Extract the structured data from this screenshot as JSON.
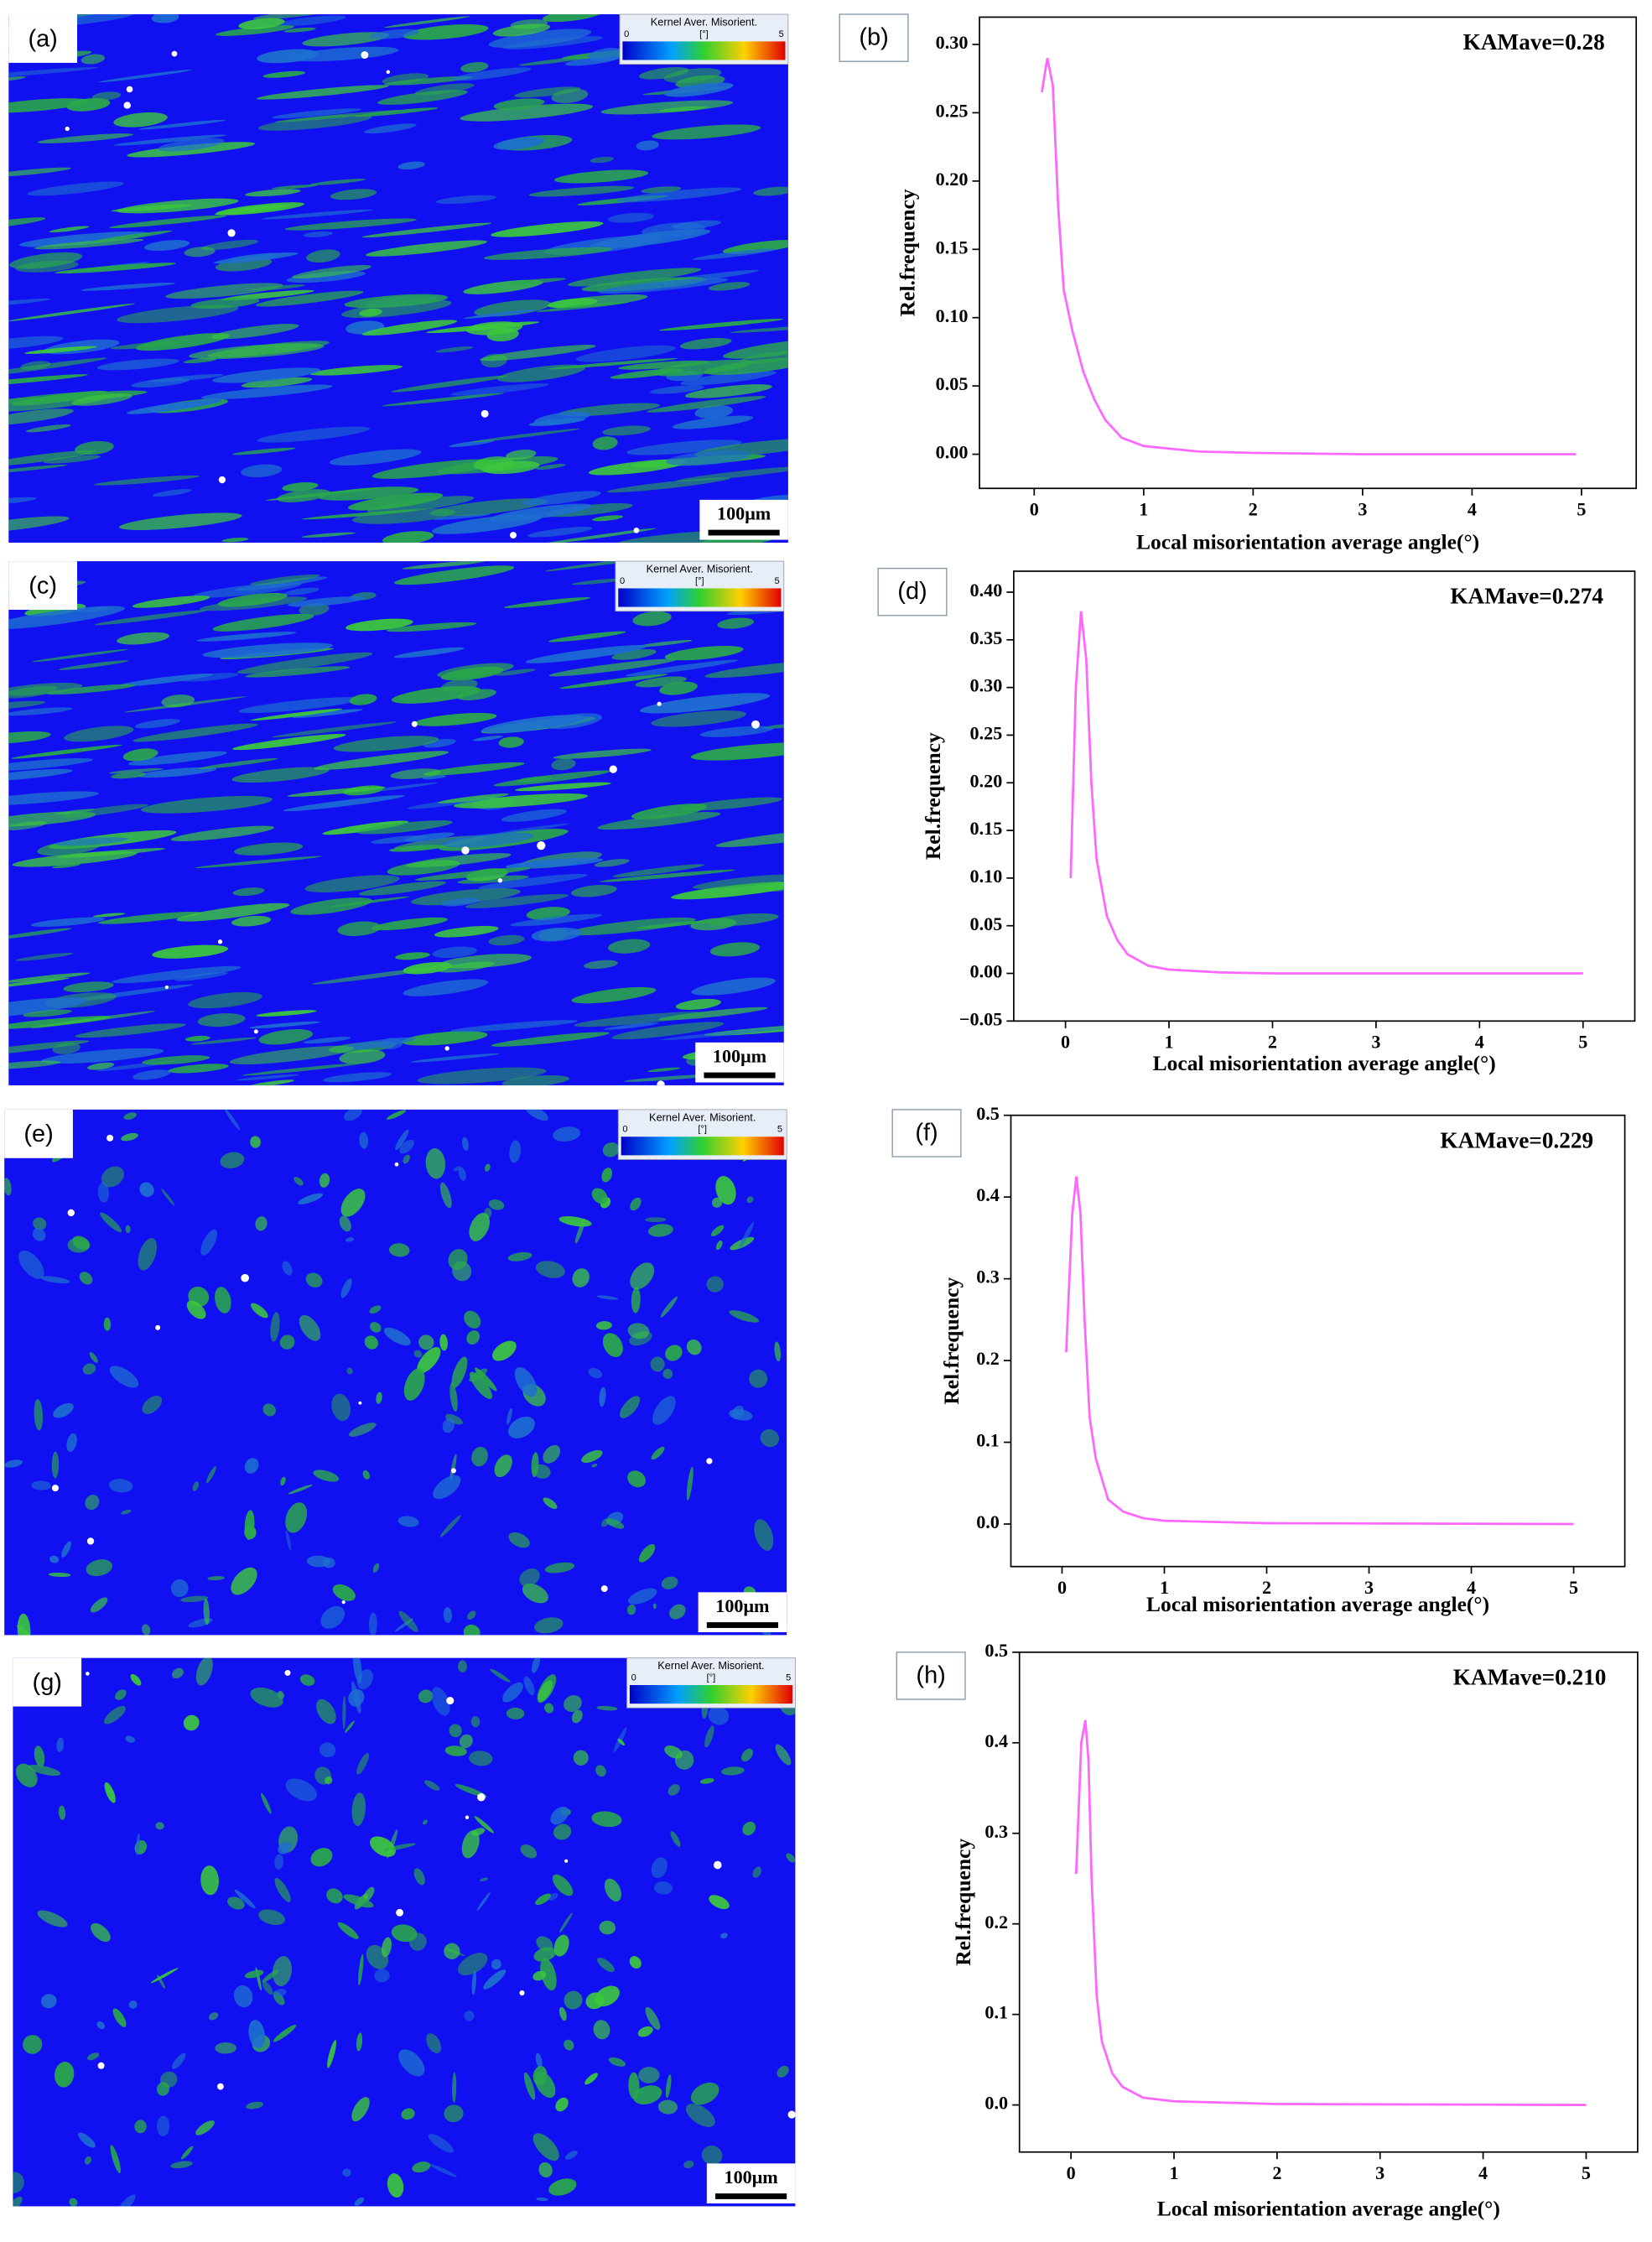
{
  "maps": [
    {
      "label": "(a)",
      "colorbar": {
        "title": "Kernel Aver. Misorient.",
        "min": 0,
        "unit": "[°]",
        "max": 5
      },
      "scale_bar": "100μm"
    },
    {
      "label": "(c)",
      "colorbar": {
        "title": "Kernel Aver. Misorient.",
        "min": 0,
        "unit": "[°]",
        "max": 5
      },
      "scale_bar": "100μm"
    },
    {
      "label": "(e)",
      "colorbar": {
        "title": "Kernel Aver. Misorient.",
        "min": 0,
        "unit": "[°]",
        "max": 5
      },
      "scale_bar": "100μm"
    },
    {
      "label": "(g)",
      "colorbar": {
        "title": "Kernel Aver. Misorient.",
        "min": 0,
        "unit": "[°]",
        "max": 5
      },
      "scale_bar": "100μm"
    }
  ],
  "chart_data": [
    {
      "type": "line",
      "label": "(b)",
      "annotation": "KAMave=0.28",
      "xlabel": "Local misorientation average angle(°)",
      "ylabel": "Rel.frequency",
      "color": "#ff66ff",
      "x": [
        0.07,
        0.12,
        0.17,
        0.22,
        0.27,
        0.35,
        0.45,
        0.55,
        0.65,
        0.8,
        1.0,
        1.5,
        2,
        3,
        4,
        4.95
      ],
      "values": [
        0.265,
        0.29,
        0.27,
        0.18,
        0.12,
        0.09,
        0.06,
        0.04,
        0.025,
        0.012,
        0.006,
        0.002,
        0.001,
        0,
        0,
        0
      ],
      "xlim": [
        -0.5,
        5.5
      ],
      "ylim": [
        -0.025,
        0.32
      ],
      "xticks": [
        0,
        1,
        2,
        3,
        4,
        5
      ],
      "yticks": [
        {
          "value": 0,
          "label": "0.00"
        },
        {
          "value": 0.05,
          "label": "0.05"
        },
        {
          "value": 0.1,
          "label": "0.10"
        },
        {
          "value": 0.15,
          "label": "0.15"
        },
        {
          "value": 0.2,
          "label": "0.20"
        },
        {
          "value": 0.25,
          "label": "0.25"
        },
        {
          "value": 0.3,
          "label": "0.30"
        }
      ]
    },
    {
      "type": "line",
      "label": "(d)",
      "annotation": "KAMave=0.274",
      "xlabel": "Local misorientation average angle(°)",
      "ylabel": "Rel.frequency",
      "color": "#ff66ff",
      "x": [
        0.05,
        0.1,
        0.15,
        0.2,
        0.25,
        0.3,
        0.4,
        0.5,
        0.6,
        0.8,
        1,
        1.5,
        2,
        5
      ],
      "values": [
        0.1,
        0.3,
        0.38,
        0.33,
        0.2,
        0.12,
        0.06,
        0.035,
        0.02,
        0.008,
        0.004,
        0.001,
        0,
        0
      ],
      "xlim": [
        -0.5,
        5.5
      ],
      "ylim": [
        -0.05,
        0.422
      ],
      "xticks": [
        0,
        1,
        2,
        3,
        4,
        5
      ],
      "yticks": [
        {
          "value": -0.05,
          "label": "−0.05"
        },
        {
          "value": 0,
          "label": "0.00"
        },
        {
          "value": 0.05,
          "label": "0.05"
        },
        {
          "value": 0.1,
          "label": "0.10"
        },
        {
          "value": 0.15,
          "label": "0.15"
        },
        {
          "value": 0.2,
          "label": "0.20"
        },
        {
          "value": 0.25,
          "label": "0.25"
        },
        {
          "value": 0.3,
          "label": "0.30"
        },
        {
          "value": 0.35,
          "label": "0.35"
        },
        {
          "value": 0.4,
          "label": "0.40"
        }
      ]
    },
    {
      "type": "line",
      "label": "(f)",
      "annotation": "KAMave=0.229",
      "xlabel": "Local misorientation average angle(°)",
      "ylabel": "Rel.frequency",
      "color": "#ff66ff",
      "x": [
        0.04,
        0.1,
        0.14,
        0.18,
        0.22,
        0.27,
        0.33,
        0.45,
        0.6,
        0.8,
        1,
        2,
        5
      ],
      "values": [
        0.21,
        0.38,
        0.425,
        0.38,
        0.25,
        0.13,
        0.08,
        0.03,
        0.015,
        0.007,
        0.004,
        0.001,
        0
      ],
      "xlim": [
        -0.5,
        5.5
      ],
      "ylim": [
        -0.052,
        0.5
      ],
      "xticks": [
        0,
        1,
        2,
        3,
        4,
        5
      ],
      "yticks": [
        {
          "value": 0,
          "label": "0.0"
        },
        0.1,
        0.2,
        0.3,
        0.4,
        0.5
      ]
    },
    {
      "type": "line",
      "label": "(h)",
      "annotation": "KAMave=0.210",
      "xlabel": "Local misorientation average angle(°)",
      "ylabel": "Rel.frequency",
      "color": "#ff66ff",
      "x": [
        0.05,
        0.1,
        0.14,
        0.17,
        0.2,
        0.25,
        0.3,
        0.4,
        0.5,
        0.7,
        1,
        2,
        5
      ],
      "values": [
        0.255,
        0.4,
        0.425,
        0.38,
        0.25,
        0.12,
        0.07,
        0.035,
        0.02,
        0.008,
        0.004,
        0.001,
        0
      ],
      "xlim": [
        -0.5,
        5.5
      ],
      "ylim": [
        -0.052,
        0.5
      ],
      "xticks": [
        0,
        1,
        2,
        3,
        4,
        5
      ],
      "yticks": [
        {
          "value": 0,
          "label": "0.0"
        },
        0.1,
        0.2,
        0.3,
        0.4,
        0.5
      ]
    }
  ]
}
